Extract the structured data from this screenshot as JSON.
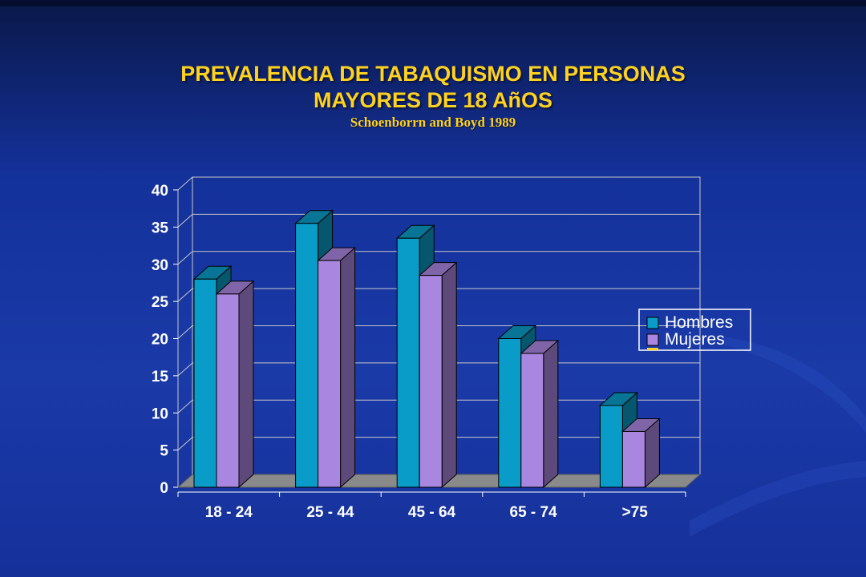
{
  "slide": {
    "title_line1": "PREVALENCIA DE TABAQUISMO EN PERSONAS",
    "title_line2": "MAYORES DE 18 AñOS",
    "subtitle": "Schoenborrn and Boyd 1989"
  },
  "colors": {
    "hombres": "#0a9cc8",
    "mujeres": "#a987e0",
    "title": "#ffd21f"
  },
  "chart_data": {
    "type": "bar",
    "title": "",
    "xlabel": "",
    "ylabel": "",
    "categories": [
      "18 - 24",
      "25 - 44",
      "45 - 64",
      "65 - 74",
      ">75"
    ],
    "series": [
      {
        "name": "Hombres",
        "values": [
          28,
          35.5,
          33.5,
          20,
          11
        ]
      },
      {
        "name": "Mujeres",
        "values": [
          26,
          30.5,
          28.5,
          18,
          7.5
        ]
      }
    ],
    "ylim": [
      0,
      40
    ],
    "yticks": [
      0,
      5,
      10,
      15,
      20,
      25,
      30,
      35,
      40
    ],
    "grid": true,
    "three_d": true,
    "legend_position": "right"
  }
}
